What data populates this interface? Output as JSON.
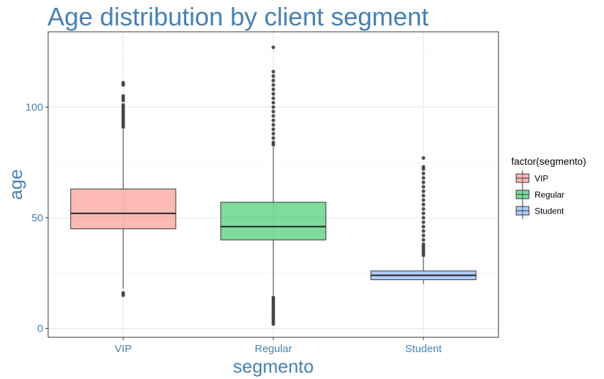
{
  "chart_data": {
    "type": "box",
    "title": "Age distribution by client segment",
    "xlabel": "segmento",
    "ylabel": "age",
    "categories": [
      "VIP",
      "Regular",
      "Student"
    ],
    "ylim": [
      -4,
      134
    ],
    "yticks": [
      0,
      50,
      100
    ],
    "grid": true,
    "legend": {
      "title": "factor(segmento)",
      "position": "right",
      "entries": [
        "VIP",
        "Regular",
        "Student"
      ]
    },
    "series": [
      {
        "category": "VIP",
        "color": "#F8766D",
        "whisker_low": 18,
        "q1": 45,
        "median": 52,
        "q3": 63,
        "whisker_high": 90,
        "outliers": [
          15,
          16,
          91,
          92,
          93,
          94,
          95,
          96,
          97,
          98,
          99,
          100,
          101,
          103,
          104,
          105,
          110,
          111
        ]
      },
      {
        "category": "Regular",
        "color": "#00BA38",
        "whisker_low": 15,
        "q1": 40,
        "median": 46,
        "q3": 57,
        "whisker_high": 82,
        "outliers": [
          2,
          3,
          4,
          5,
          6,
          7,
          8,
          9,
          10,
          11,
          12,
          13,
          14,
          83,
          84,
          86,
          88,
          90,
          92,
          94,
          96,
          98,
          100,
          102,
          104,
          106,
          108,
          110,
          112,
          114,
          116,
          127
        ]
      },
      {
        "category": "Student",
        "color": "#619CFF",
        "whisker_low": 20,
        "q1": 22,
        "median": 24,
        "q3": 26,
        "whisker_high": 32,
        "outliers": [
          33,
          34,
          35,
          36,
          37,
          38,
          40,
          42,
          44,
          46,
          48,
          50,
          52,
          54,
          56,
          58,
          60,
          62,
          64,
          66,
          68,
          70,
          72,
          73,
          77
        ]
      }
    ]
  }
}
